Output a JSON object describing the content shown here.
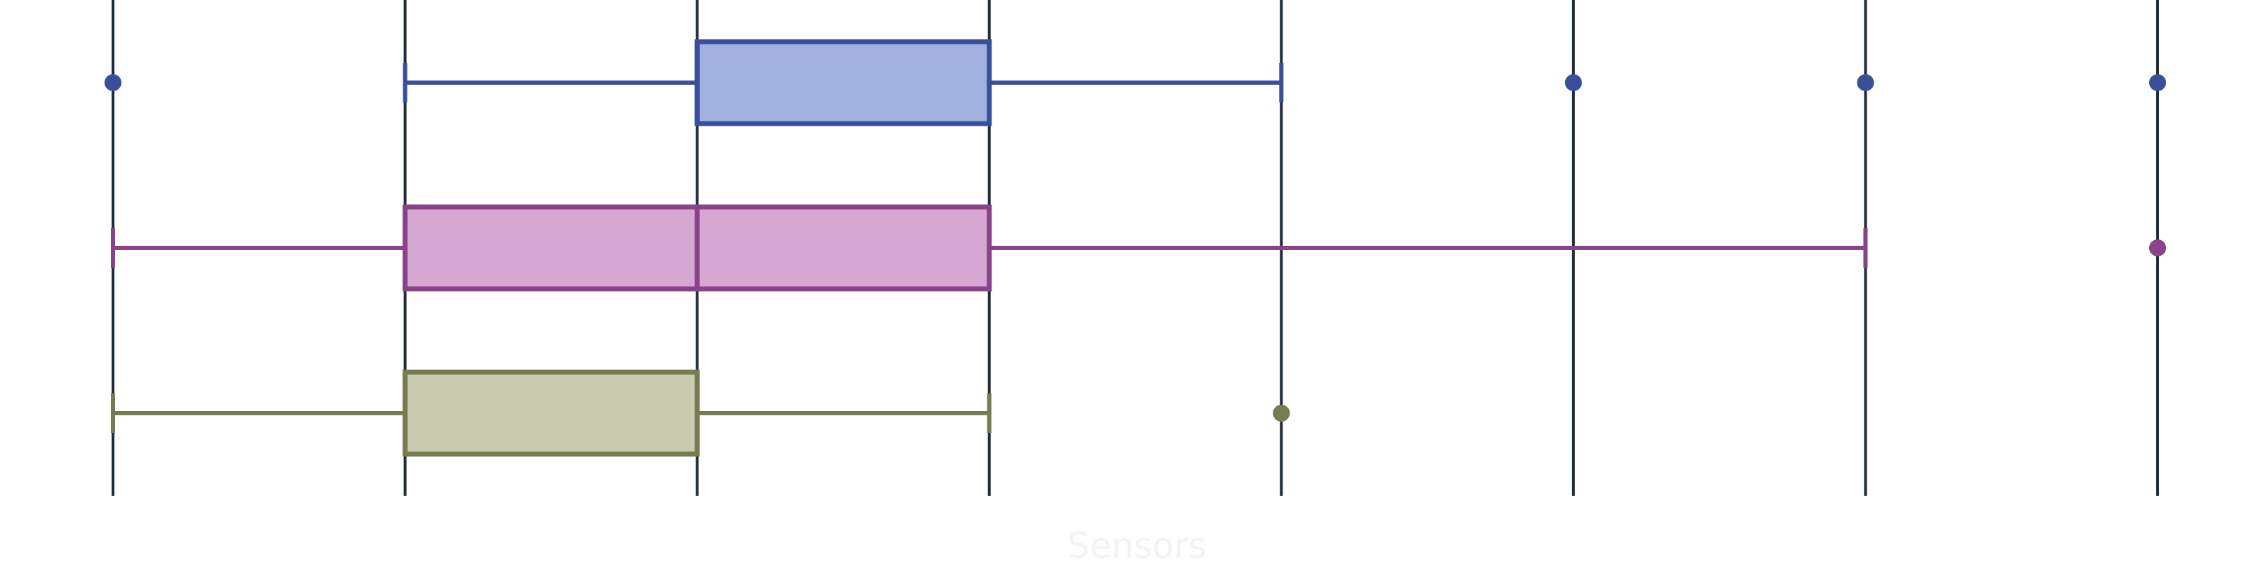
{
  "chart_data": {
    "type": "boxplot",
    "orientation": "horizontal",
    "xlabel": "Sensors",
    "ylabel": "",
    "xlim": [
      0,
      7
    ],
    "xticks": [
      0,
      1,
      2,
      3,
      4,
      5,
      6,
      7
    ],
    "grid": "vertical",
    "legend": "none",
    "series": [
      {
        "whisker_low": 1,
        "q1": 2,
        "median": 2,
        "q3": 3,
        "whisker_high": 4,
        "outliers": [
          0,
          5,
          6,
          7
        ],
        "color": "#3a4f9a",
        "fill": "#a2b0e0"
      },
      {
        "whisker_low": 0,
        "q1": 1,
        "median": 2,
        "q3": 3,
        "whisker_high": 6,
        "outliers": [
          7
        ],
        "color": "#8a4388",
        "fill": "#d5a7d2"
      },
      {
        "whisker_low": 0,
        "q1": 1,
        "median": 1,
        "q3": 2,
        "whisker_high": 3,
        "outliers": [
          4
        ],
        "color": "#767b50",
        "fill": "#c9ccb1"
      }
    ]
  },
  "colors": {
    "grid": "#1f2d3a",
    "background": "#ffffff",
    "axis_title": "#f1f3f5"
  }
}
